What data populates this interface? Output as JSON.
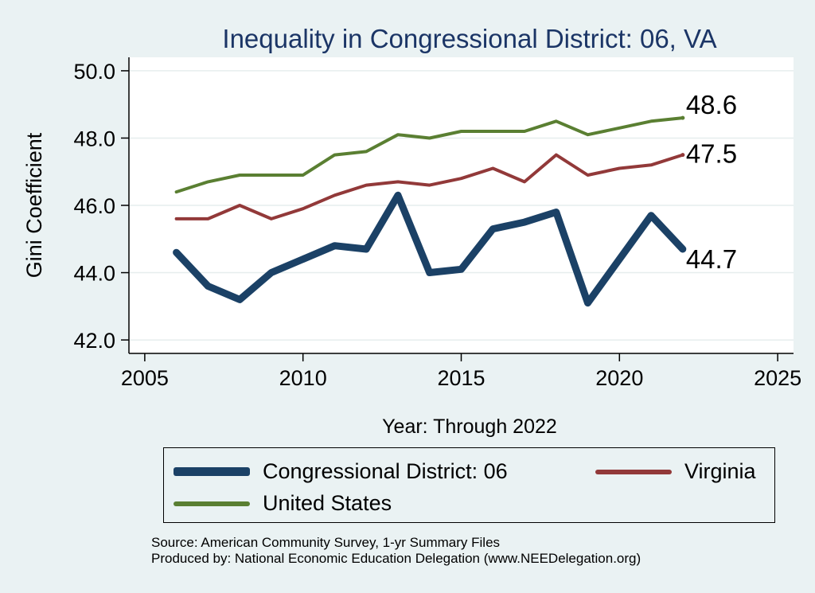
{
  "chart_data": {
    "type": "line",
    "title": "Inequality in Congressional District:  06, VA",
    "xlabel": "Year: Through 2022",
    "ylabel": "Gini Coefficient",
    "xlim": [
      2004.5,
      2025.5
    ],
    "ylim": [
      41.6,
      50.4
    ],
    "x_ticks": [
      2005,
      2010,
      2015,
      2020,
      2025
    ],
    "y_ticks": [
      42.0,
      44.0,
      46.0,
      48.0,
      50.0
    ],
    "y_tick_labels": [
      "42.0",
      "44.0",
      "46.0",
      "48.0",
      "50.0"
    ],
    "x_tick_labels": [
      "2005",
      "2010",
      "2015",
      "2020",
      "2025"
    ],
    "grid": "horizontal",
    "x": [
      2006,
      2007,
      2008,
      2009,
      2010,
      2011,
      2012,
      2013,
      2014,
      2015,
      2016,
      2017,
      2018,
      2019,
      2020,
      2021,
      2022
    ],
    "series": [
      {
        "name": "United States",
        "color": "#5a7f32",
        "values": [
          46.4,
          46.7,
          46.9,
          46.9,
          46.9,
          47.5,
          47.6,
          48.1,
          48.0,
          48.2,
          48.2,
          48.2,
          48.5,
          48.1,
          48.3,
          48.5,
          48.6
        ],
        "end_label": "48.6"
      },
      {
        "name": "Virginia",
        "color": "#923939",
        "values": [
          45.6,
          45.6,
          46.0,
          45.6,
          45.9,
          46.3,
          46.6,
          46.7,
          46.6,
          46.8,
          47.1,
          46.7,
          47.5,
          46.9,
          47.1,
          47.2,
          47.5
        ],
        "end_label": "47.5"
      },
      {
        "name": "Congressional District:  06",
        "color": "#1b4166",
        "values": [
          44.6,
          43.6,
          43.2,
          44.0,
          44.4,
          44.8,
          44.7,
          46.3,
          44.0,
          44.1,
          45.3,
          45.5,
          45.8,
          43.1,
          44.4,
          45.7,
          44.7
        ],
        "end_label": "44.7"
      }
    ],
    "legend_placement": "bottom"
  },
  "legend": {
    "items": [
      {
        "label": "Congressional District:  06",
        "color": "#1b4166"
      },
      {
        "label": "Virginia",
        "color": "#923939"
      },
      {
        "label": "United States",
        "color": "#5a7f32"
      }
    ]
  },
  "notes": {
    "source": "Source: American Community Survey, 1-yr Summary Files",
    "produced": "Produced by: National Economic Education Delegation (www.NEEDelegation.org)"
  }
}
